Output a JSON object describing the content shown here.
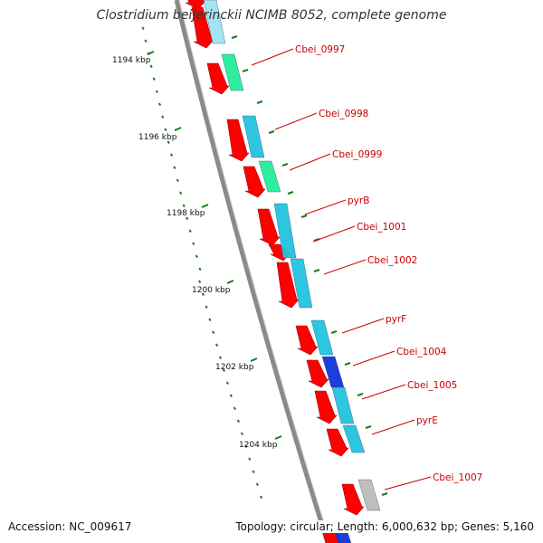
{
  "title": "Clostridium beijerinckii NCIMB 8052, complete genome",
  "accession": "Accession: NC_009617",
  "summary": "Topology: circular; Length: 6,000,632 bp; Genes: 5,160",
  "colors": {
    "cds_forward": "#ff0000",
    "backbone": "#888888",
    "tick": "#1a7a1a",
    "label": "#cc0000",
    "cyan": "#22c4e0",
    "green": "#22ee99",
    "blue": "#1133dd",
    "gray": "#bbbbbb"
  },
  "ruler": [
    {
      "kbp": "1194 kbp"
    },
    {
      "kbp": "1196 kbp"
    },
    {
      "kbp": "1198 kbp"
    },
    {
      "kbp": "1200 kbp"
    },
    {
      "kbp": "1202 kbp"
    },
    {
      "kbp": "1204 kbp"
    }
  ],
  "gene_labels": [
    "Cbei_0997",
    "Cbei_0998",
    "Cbei_0999",
    "pyrB",
    "Cbei_1001",
    "Cbei_1002",
    "pyrF",
    "Cbei_1004",
    "Cbei_1005",
    "pyrE",
    "Cbei_1007"
  ]
}
